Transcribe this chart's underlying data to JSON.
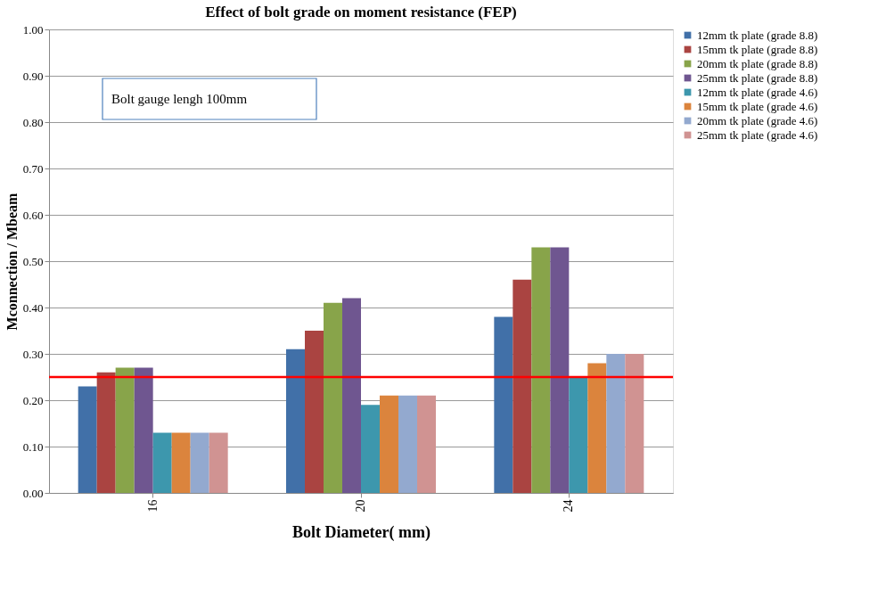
{
  "chart_data": {
    "type": "bar",
    "title": "Effect of bolt grade on moment resistance (FEP)",
    "xlabel": "Bolt Diameter( mm)",
    "ylabel": "Mconnection / Mbeam",
    "categories": [
      "16",
      "20",
      "24"
    ],
    "series": [
      {
        "name": "12mm tk plate (grade 8.8)",
        "color": "#4170a8",
        "values": [
          0.23,
          0.31,
          0.38
        ]
      },
      {
        "name": "15mm tk plate (grade 8.8)",
        "color": "#aa4441",
        "values": [
          0.26,
          0.35,
          0.46
        ]
      },
      {
        "name": "20mm tk plate (grade 8.8)",
        "color": "#88a44a",
        "values": [
          0.27,
          0.41,
          0.53
        ]
      },
      {
        "name": "25mm tk plate (grade 8.8)",
        "color": "#6f5690",
        "values": [
          0.27,
          0.42,
          0.53
        ]
      },
      {
        "name": "12mm tk plate (grade 4.6)",
        "color": "#3d97ad",
        "values": [
          0.13,
          0.19,
          0.25
        ]
      },
      {
        "name": "15mm tk plate (grade 4.6)",
        "color": "#db843d",
        "values": [
          0.13,
          0.21,
          0.28
        ]
      },
      {
        "name": "20mm tk plate (grade 4.6)",
        "color": "#93a9cf",
        "values": [
          0.13,
          0.21,
          0.3
        ]
      },
      {
        "name": "25mm tk plate (grade 4.6)",
        "color": "#d09392",
        "values": [
          0.13,
          0.21,
          0.3
        ]
      }
    ],
    "ylim": [
      0,
      1.0
    ],
    "yticks": [
      {
        "value": 0,
        "label": "0.00"
      },
      {
        "value": 0.1,
        "label": "0.10"
      },
      {
        "value": 0.2,
        "label": "0.20"
      },
      {
        "value": 0.3,
        "label": "0.30"
      },
      {
        "value": 0.4,
        "label": "0.40"
      },
      {
        "value": 0.5,
        "label": "0.50"
      },
      {
        "value": 0.6,
        "label": "0.60"
      },
      {
        "value": 0.7,
        "label": "0.70"
      },
      {
        "value": 0.8,
        "label": "0.80"
      },
      {
        "value": 0.9,
        "label": "0.90"
      },
      {
        "value": 1.0,
        "label": "1.00"
      }
    ],
    "ref_lines": [
      {
        "axis": "y",
        "value": 0.25,
        "color": "#ff0000"
      }
    ],
    "annotations": [
      "Bolt gauge lengh 100mm"
    ],
    "grid": "y",
    "legend": "top right"
  }
}
